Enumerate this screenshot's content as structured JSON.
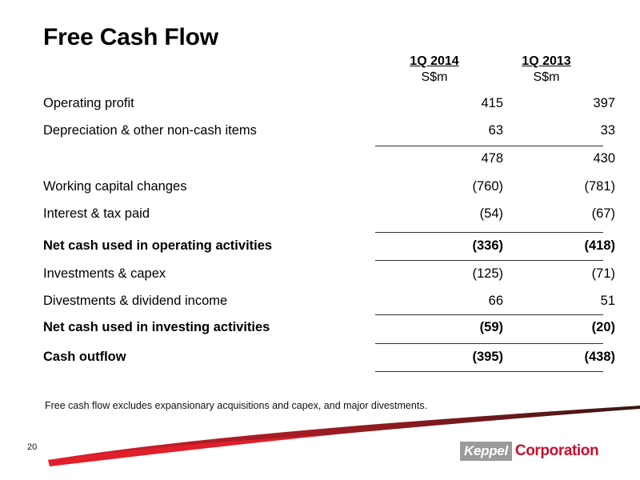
{
  "title": "Free Cash Flow",
  "columns": [
    {
      "period": "1Q 2014",
      "unit": "S$m"
    },
    {
      "period": "1Q 2013",
      "unit": "S$m"
    }
  ],
  "rows": [
    {
      "label": "Operating profit",
      "v1": "415",
      "v2": "397"
    },
    {
      "label": "Depreciation & other non-cash items",
      "v1": "63",
      "v2": "33"
    },
    {
      "label": "",
      "v1": "478",
      "v2": "430"
    },
    {
      "label": "Working capital changes",
      "v1": "(760)",
      "v2": "(781)"
    },
    {
      "label": "Interest & tax paid",
      "v1": "(54)",
      "v2": "(67)"
    },
    {
      "label": "Net cash used in operating activities",
      "v1": "(336)",
      "v2": "(418)"
    },
    {
      "label": "Investments & capex",
      "v1": "(125)",
      "v2": "(71)"
    },
    {
      "label": "Divestments & dividend income",
      "v1": "66",
      "v2": "51"
    },
    {
      "label": "Net cash used in investing activities",
      "v1": "(59)",
      "v2": "(20)"
    },
    {
      "label": "Cash outflow",
      "v1": "(395)",
      "v2": "(438)"
    }
  ],
  "footnote": "Free cash flow excludes expansionary acquisitions and capex, and major divestments.",
  "page_number": "20",
  "logo": {
    "part1": "Keppel",
    "part2": "Corporation"
  },
  "colors": {
    "brand_red": "#c8102e",
    "logo_grey": "#9a9a9a"
  }
}
